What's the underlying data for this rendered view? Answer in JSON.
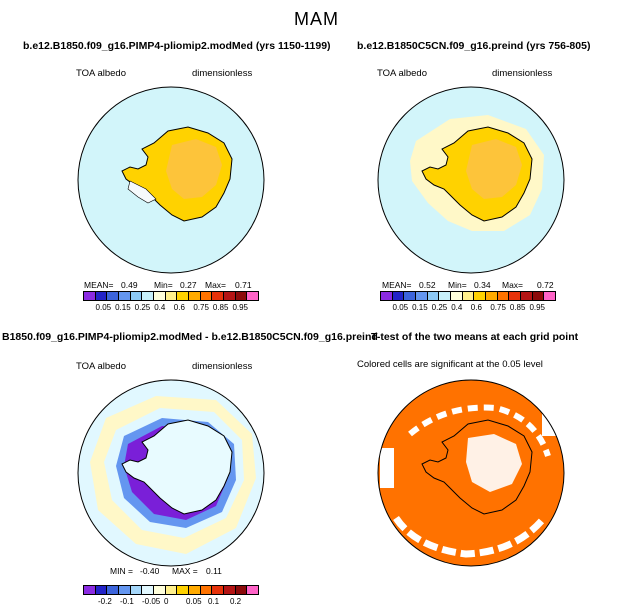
{
  "season": "MAM",
  "panels": {
    "tl": {
      "title": "b.e12.B1850.f09_g16.PIMP4-pliomip2.modMed (yrs 1150-1199)",
      "left_label": "TOA albedo",
      "right_label": "dimensionless",
      "stats": {
        "mean_label": "MEAN=",
        "mean": "0.49",
        "min_label": "Min=",
        "min": "0.27",
        "max_label": "Max=",
        "max": "0.71"
      }
    },
    "tr": {
      "title": "b.e12.B1850C5CN.f09_g16.preind (yrs 756-805)",
      "left_label": "TOA albedo",
      "right_label": "dimensionless",
      "stats": {
        "mean_label": "MEAN=",
        "mean": "0.52",
        "min_label": "Min=",
        "min": "0.34",
        "max_label": "Max=",
        "max": "0.72"
      }
    },
    "bl": {
      "title": "B1850.f09_g16.PIMP4-pliomip2.modMed - b.e12.B1850C5CN.f09_g16.preind",
      "left_label": "TOA albedo",
      "right_label": "dimensionless",
      "stats": {
        "min_label": "MIN =",
        "min": "-0.40",
        "max_label": "MAX =",
        "max": "0.11"
      }
    },
    "br": {
      "title": "T-test of the two means at each grid point",
      "note": "Colored cells are significant at the 0.05 level"
    }
  },
  "colorbars": {
    "abs": {
      "colors": [
        "#8b2be2",
        "#2323c8",
        "#3c64dc",
        "#6496f0",
        "#8cc8f5",
        "#c8f0fa",
        "#ffffdc",
        "#fff08c",
        "#ffd200",
        "#ffaa00",
        "#ff7300",
        "#e6320a",
        "#b41414",
        "#8b0a0a",
        "#ff64c8"
      ],
      "ticks": [
        "0.05",
        "0.15",
        "0.25",
        "0.4",
        "0.6",
        "0.75",
        "0.85",
        "0.95"
      ]
    },
    "diff": {
      "colors": [
        "#8b2be2",
        "#2323c8",
        "#3c64dc",
        "#6496f0",
        "#a5d7fa",
        "#e1f8ff",
        "#ffffdc",
        "#fff08c",
        "#ffd200",
        "#ffaa00",
        "#ff7300",
        "#e6320a",
        "#b41414",
        "#8b0a0a",
        "#ff64c8"
      ],
      "ticks": [
        "-0.2",
        "-0.1",
        "-0.05",
        "0",
        "0.05",
        "0.1",
        "0.2"
      ]
    }
  },
  "palette": {
    "ocean": "#d2f5fa",
    "ice": "#f6fafc",
    "yellow": "#ffd200",
    "gold": "#fdc43a",
    "orange": "#ff7200",
    "blue": "#3c50dc",
    "purple": "#7a1fd8"
  }
}
